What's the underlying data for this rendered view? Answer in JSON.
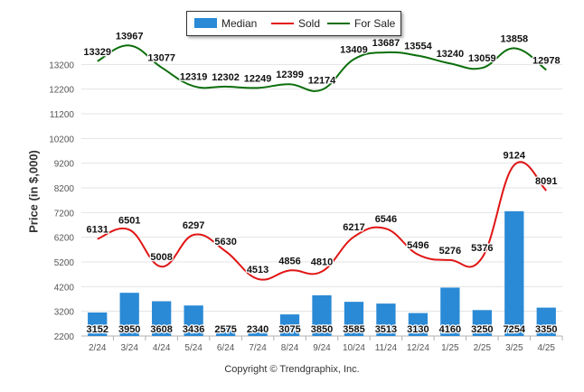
{
  "chart_data": {
    "type": "bar",
    "categories": [
      "2/24",
      "3/24",
      "4/24",
      "5/24",
      "6/24",
      "7/24",
      "8/24",
      "9/24",
      "10/24",
      "11/24",
      "12/24",
      "1/25",
      "2/25",
      "3/25",
      "4/25"
    ],
    "series": [
      {
        "name": "Median",
        "kind": "bar",
        "color": "#2a8ad6",
        "values": [
          3152,
          3950,
          3608,
          3436,
          2575,
          2340,
          3075,
          3850,
          3585,
          3513,
          3130,
          4160,
          3250,
          7254,
          3350
        ]
      },
      {
        "name": "Sold",
        "kind": "line",
        "color": "#e01515",
        "values": [
          6131,
          6501,
          5008,
          6297,
          5630,
          4513,
          4856,
          4810,
          6217,
          6546,
          5496,
          5276,
          5376,
          9124,
          8091
        ]
      },
      {
        "name": "For Sale",
        "kind": "line",
        "color": "#0b6e0b",
        "values": [
          13329,
          13967,
          13077,
          12319,
          12302,
          12249,
          12399,
          12174,
          13409,
          13687,
          13554,
          13240,
          13059,
          13858,
          12978
        ]
      }
    ],
    "y_ticks": [
      2200,
      3200,
      4200,
      5200,
      6200,
      7200,
      8200,
      9200,
      10200,
      11200,
      12200,
      13200
    ],
    "ylim": [
      2200,
      14200
    ],
    "ylabel": "Price (in $,000)",
    "xlabel": "",
    "grid": true,
    "legend_position": "top-center",
    "data_labels": true
  },
  "copyright": "Copyright © Trendgraphix, Inc."
}
